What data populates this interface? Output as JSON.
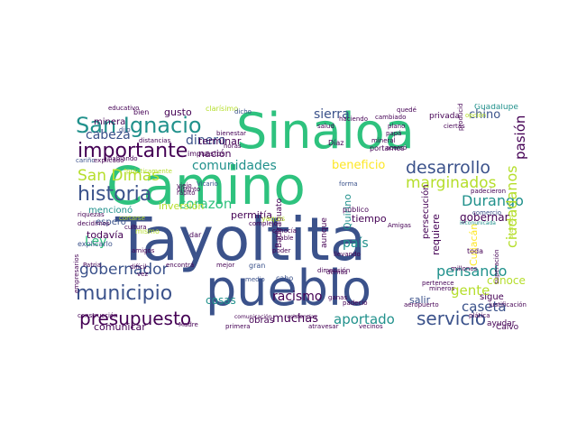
{
  "colors": {
    "background": "#ffffff",
    "palette": [
      "#440154",
      "#3b528b",
      "#21918c",
      "#2ec27e",
      "#b5de2b",
      "#fde725"
    ]
  },
  "wordcloud": {
    "words": [
      {
        "text": "Tayoltita",
        "color": "#3b528b"
      },
      {
        "text": "Camino",
        "color": "#2ec27e"
      },
      {
        "text": "pueblo",
        "color": "#3b528b"
      },
      {
        "text": "Sinaloa",
        "color": "#2ec27e"
      },
      {
        "text": "San Ignacio",
        "color": "#21918c"
      },
      {
        "text": "importante",
        "color": "#440154"
      },
      {
        "text": "historia",
        "color": "#3b528b"
      },
      {
        "text": "municipio",
        "color": "#3b528b"
      },
      {
        "text": "presupuesto",
        "color": "#440154"
      },
      {
        "text": "desarrollo",
        "color": "#3b528b"
      },
      {
        "text": "servicio",
        "color": "#3b528b"
      },
      {
        "text": "gobernador",
        "color": "#3b528b"
      },
      {
        "text": "marginados",
        "color": "#b5de2b"
      },
      {
        "text": "Durango",
        "color": "#21918c"
      },
      {
        "text": "San Dimas",
        "color": "#b5de2b"
      },
      {
        "text": "ciudadanos",
        "color": "#b5de2b"
      },
      {
        "text": "comunidades",
        "color": "#21918c"
      },
      {
        "text": "pensando",
        "color": "#21918c"
      },
      {
        "text": "aportado",
        "color": "#21918c"
      },
      {
        "text": "corazón",
        "color": "#2ec27e"
      },
      {
        "text": "cabeza",
        "color": "#3b528b"
      },
      {
        "text": "dinero",
        "color": "#3b528b"
      },
      {
        "text": "sierra",
        "color": "#3b528b"
      },
      {
        "text": "chino",
        "color": "#3b528b"
      },
      {
        "text": "pasión",
        "color": "#440154"
      },
      {
        "text": "beneficio",
        "color": "#fde725"
      },
      {
        "text": "racismo",
        "color": "#440154"
      },
      {
        "text": "muchas",
        "color": "#440154"
      },
      {
        "text": "gente",
        "color": "#b5de2b"
      },
      {
        "text": "caseta",
        "color": "#3b528b"
      },
      {
        "text": "país",
        "color": "#21918c"
      },
      {
        "text": "Ley",
        "color": "#2ec27e"
      },
      {
        "text": "Quirino",
        "color": "#21918c"
      },
      {
        "text": "Culiacán",
        "color": "#fde725"
      },
      {
        "text": "gobernar",
        "color": "#440154"
      },
      {
        "text": "conoce",
        "color": "#b5de2b"
      },
      {
        "text": "cosas",
        "color": "#21918c"
      },
      {
        "text": "comunicar",
        "color": "#440154"
      },
      {
        "text": "persecución",
        "color": "#440154"
      },
      {
        "text": "requiere",
        "color": "#440154"
      },
      {
        "text": "permitía",
        "color": "#440154"
      },
      {
        "text": "tiempo",
        "color": "#440154"
      },
      {
        "text": "inversión",
        "color": "#b5de2b"
      },
      {
        "text": "mencionó",
        "color": "#21918c"
      },
      {
        "text": "todavía",
        "color": "#440154"
      },
      {
        "text": "espero",
        "color": "#3b528b"
      },
      {
        "text": "terminar",
        "color": "#440154"
      },
      {
        "text": "nación",
        "color": "#440154"
      },
      {
        "text": "gusto",
        "color": "#440154"
      },
      {
        "text": "minera",
        "color": "#440154"
      },
      {
        "text": "sigue",
        "color": "#440154"
      },
      {
        "text": "salir",
        "color": "#3b528b"
      },
      {
        "text": "obras",
        "color": "#440154"
      },
      {
        "text": "aunque",
        "color": "#440154"
      },
      {
        "text": "Guadalupe",
        "color": "#21918c"
      },
      {
        "text": "privada",
        "color": "#440154"
      },
      {
        "text": "ayudar",
        "color": "#440154"
      },
      {
        "text": "Calvo",
        "color": "#440154"
      },
      {
        "text": "Badiraguato",
        "color": "#440154"
      },
      {
        "text": "impuestos",
        "color": "#440154"
      },
      {
        "text": "bien",
        "color": "#440154"
      },
      {
        "text": "clarísimo",
        "color": "#b5de2b"
      },
      {
        "text": "portarnos",
        "color": "#440154"
      },
      {
        "text": "Díaz",
        "color": "#440154"
      },
      {
        "text": "explicarlo",
        "color": "#3b528b"
      },
      {
        "text": "público",
        "color": "#440154"
      },
      {
        "text": "toda",
        "color": "#440154"
      },
      {
        "text": "cabo",
        "color": "#3b528b"
      },
      {
        "text": "dar",
        "color": "#440154"
      },
      {
        "text": "comercio",
        "color": "#3b528b"
      },
      {
        "text": "gran",
        "color": "#3b528b"
      },
      {
        "text": "medio",
        "color": "#3b528b"
      },
      {
        "text": "yaquis",
        "color": "#b5de2b"
      },
      {
        "text": "mismo",
        "color": "#b5de2b"
      },
      {
        "text": "hablando",
        "color": "#440154"
      },
      {
        "text": "cariño",
        "color": "#3b528b"
      },
      {
        "text": "mineral",
        "color": "#440154"
      },
      {
        "text": "plano",
        "color": "#440154"
      },
      {
        "text": "papá",
        "color": "#440154"
      },
      {
        "text": "quedé",
        "color": "#440154"
      },
      {
        "text": "haciendo",
        "color": "#440154"
      },
      {
        "text": "cambiado",
        "color": "#440154"
      },
      {
        "text": "acercó",
        "color": "#440154"
      },
      {
        "text": "Vicario",
        "color": "#3b528b"
      },
      {
        "text": "forma",
        "color": "#3b528b"
      },
      {
        "text": "dicho",
        "color": "#3b528b"
      },
      {
        "text": "horas",
        "color": "#440154"
      },
      {
        "text": "dijo",
        "color": "#3b528b"
      },
      {
        "text": "distancias",
        "color": "#440154"
      },
      {
        "text": "educativo",
        "color": "#440154"
      },
      {
        "text": "bienestar",
        "color": "#440154"
      },
      {
        "text": "prácticamente",
        "color": "#b5de2b"
      },
      {
        "text": "Madre",
        "color": "#440154"
      },
      {
        "text": "primera",
        "color": "#440154"
      },
      {
        "text": "atravesar",
        "color": "#440154"
      },
      {
        "text": "vecinos",
        "color": "#440154"
      },
      {
        "text": "comunicación",
        "color": "#440154"
      },
      {
        "text": "resistencias",
        "color": "#440154"
      },
      {
        "text": "plática",
        "color": "#440154"
      },
      {
        "text": "superación",
        "color": "#440154"
      },
      {
        "text": "millones",
        "color": "#440154"
      },
      {
        "text": "pertenece",
        "color": "#440154"
      },
      {
        "text": "mineros",
        "color": "#440154"
      },
      {
        "text": "ciertas",
        "color": "#440154"
      },
      {
        "text": "justificación",
        "color": "#440154"
      },
      {
        "text": "construcción",
        "color": "#440154"
      },
      {
        "text": "empresarios",
        "color": "#440154"
      },
      {
        "text": "Patria",
        "color": "#440154"
      },
      {
        "text": "riquezas",
        "color": "#440154"
      },
      {
        "text": "decidimos",
        "color": "#440154"
      },
      {
        "text": "dimensión",
        "color": "#440154"
      },
      {
        "text": "ganas",
        "color": "#440154"
      },
      {
        "text": "llevando",
        "color": "#440154"
      },
      {
        "text": "padecieron",
        "color": "#440154"
      },
      {
        "text": "poder",
        "color": "#440154"
      },
      {
        "text": "demás",
        "color": "#440154"
      },
      {
        "text": "padeció",
        "color": "#440154"
      },
      {
        "text": "complejo",
        "color": "#440154"
      },
      {
        "text": "hable",
        "color": "#440154"
      },
      {
        "text": "conocía",
        "color": "#440154"
      },
      {
        "text": "mejor",
        "color": "#440154"
      },
      {
        "text": "amigos",
        "color": "#440154"
      },
      {
        "text": "vez",
        "color": "#440154"
      },
      {
        "text": "difícil",
        "color": "#440154"
      },
      {
        "text": "cultura",
        "color": "#440154"
      },
      {
        "text": "cortarse",
        "color": "#b5de2b"
      },
      {
        "text": "explicado",
        "color": "#440154"
      },
      {
        "text": "viejo",
        "color": "#440154"
      },
      {
        "text": "rápito",
        "color": "#440154"
      },
      {
        "text": "distinto",
        "color": "#440154"
      },
      {
        "text": "encontrá",
        "color": "#440154"
      },
      {
        "text": "inconunicada",
        "color": "#21918c"
      },
      {
        "text": "producidos",
        "color": "#440154"
      },
      {
        "text": "opción",
        "color": "#b5de2b"
      },
      {
        "text": "salud",
        "color": "#440154"
      },
      {
        "text": "aeropuerto",
        "color": "#440154"
      },
      {
        "text": "atender",
        "color": "#b5de2b"
      },
      {
        "text": "Amigas",
        "color": "#440154"
      }
    ]
  }
}
